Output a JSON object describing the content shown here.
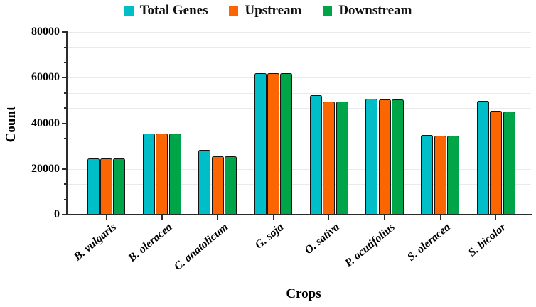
{
  "chart_data": {
    "type": "bar",
    "title": "",
    "xlabel": "Crops",
    "ylabel": "Count",
    "ylim": [
      0,
      80000
    ],
    "ytick_values": [
      0,
      20000,
      40000,
      60000,
      80000
    ],
    "ytick_labels": [
      "0",
      "20000",
      "40000",
      "60000",
      "80000"
    ],
    "minor_divisions_per_major": 3,
    "grid": "horizontal-minor-and-major",
    "legend_position": "top-center",
    "categories": [
      "B. vulgaris",
      "B. oleracea",
      "C. anatolicum",
      "G. soja",
      "O. sativa",
      "P. acutifolius",
      "S. oleracea",
      "S. bicolor"
    ],
    "series": [
      {
        "name": "Total Genes",
        "color": "#00BEC8",
        "values": [
          24500,
          35500,
          28300,
          61800,
          52200,
          50800,
          34800,
          49700
        ]
      },
      {
        "name": "Upstream",
        "color": "#FB6602",
        "values": [
          24600,
          35500,
          25400,
          61900,
          49400,
          50400,
          34700,
          45300
        ]
      },
      {
        "name": "Downstream",
        "color": "#00A549",
        "values": [
          24500,
          35400,
          25600,
          61900,
          49400,
          50300,
          34700,
          45100
        ]
      }
    ],
    "axis_color": "#2b2b2b",
    "gridline_color": "#eaeaea"
  }
}
